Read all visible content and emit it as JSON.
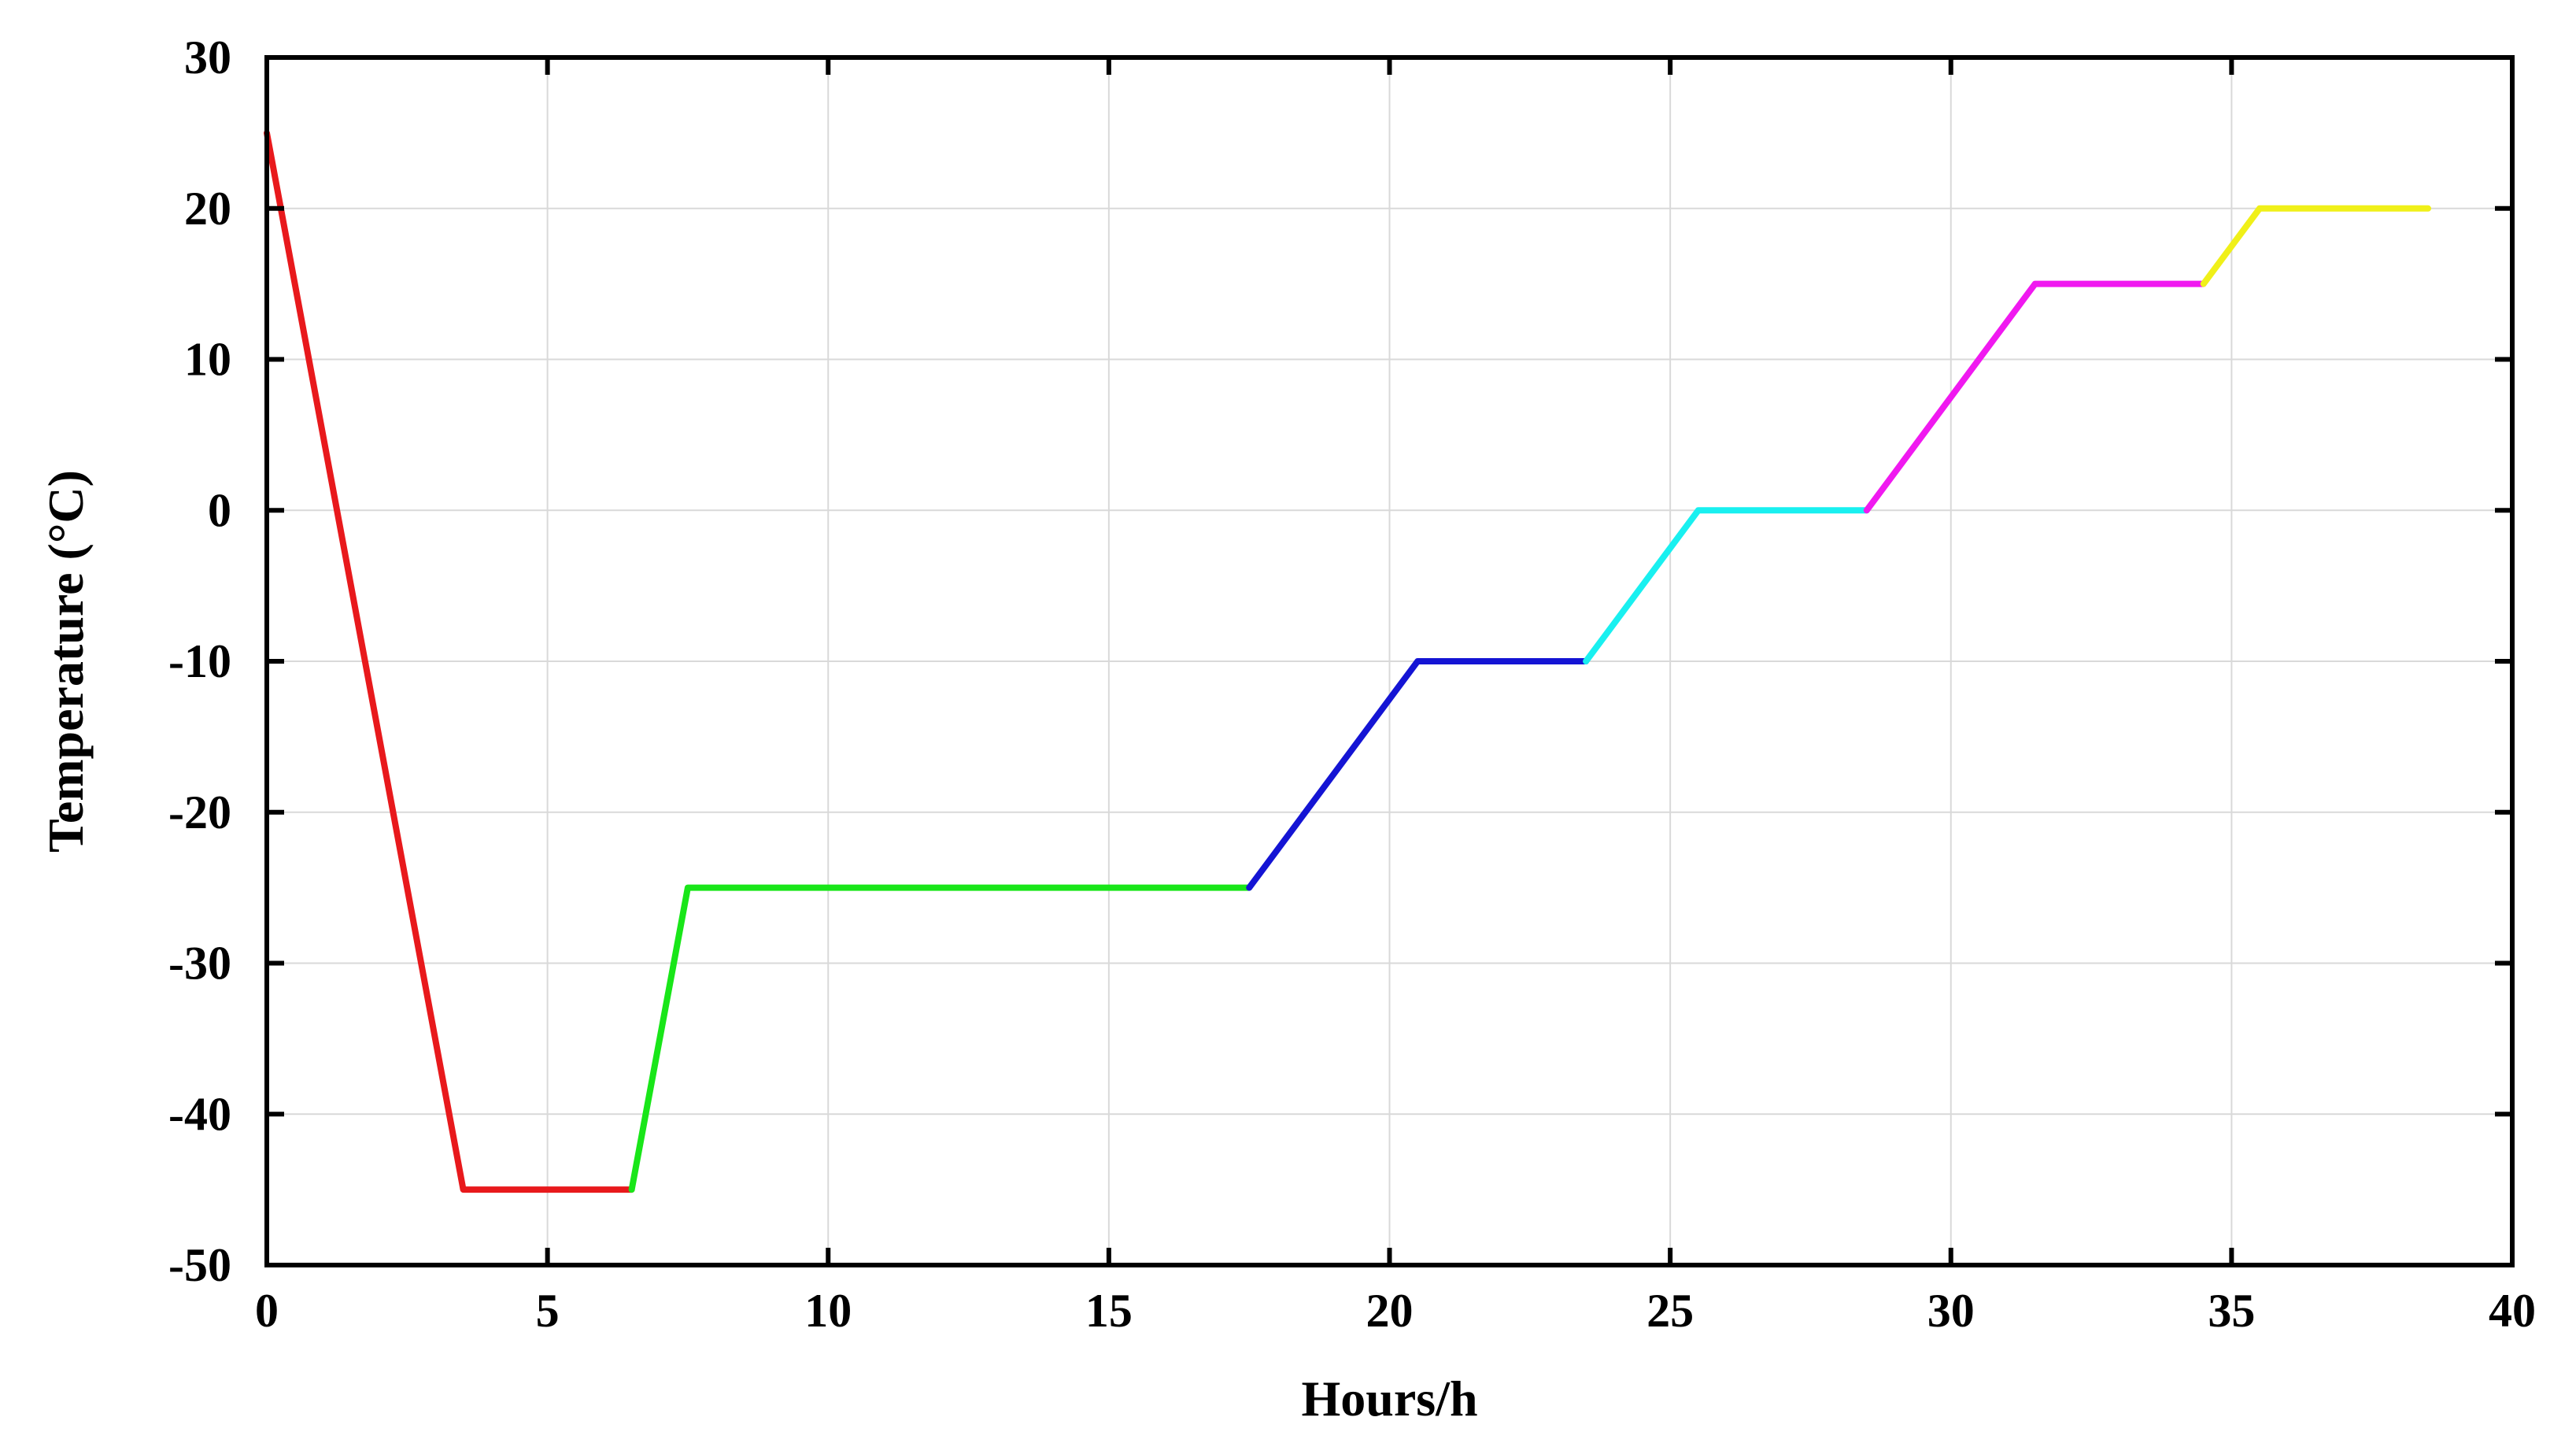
{
  "chart_data": {
    "type": "line",
    "title": "",
    "xlabel": "Hours/h",
    "ylabel": "Temperature (°C)",
    "xlim": [
      0,
      40
    ],
    "ylim": [
      -50,
      30
    ],
    "xticks": [
      "0",
      "5",
      "10",
      "15",
      "20",
      "25",
      "30",
      "35",
      "40"
    ],
    "yticks": [
      "30",
      "20",
      "10",
      "0",
      "-10",
      "-20",
      "-30",
      "-40",
      "-50"
    ],
    "grid": true,
    "legend": "none",
    "series": [
      {
        "color": "#e8191c",
        "x": [
          0,
          3.5,
          6.5
        ],
        "y": [
          25,
          -45,
          -45
        ]
      },
      {
        "color": "#19e619",
        "x": [
          6.5,
          7.5,
          17.5
        ],
        "y": [
          -45,
          -25,
          -25
        ]
      },
      {
        "color": "#1414d4",
        "x": [
          17.5,
          20.5,
          23.5
        ],
        "y": [
          -25,
          -10,
          -10
        ]
      },
      {
        "color": "#19f0f0",
        "x": [
          23.5,
          25.5,
          28.5
        ],
        "y": [
          -10,
          0,
          0
        ]
      },
      {
        "color": "#f019f0",
        "x": [
          28.5,
          31.5,
          34.5
        ],
        "y": [
          0,
          15,
          15
        ]
      },
      {
        "color": "#f0f019",
        "x": [
          34.5,
          35.5,
          38.5
        ],
        "y": [
          15,
          20,
          20
        ]
      }
    ]
  }
}
